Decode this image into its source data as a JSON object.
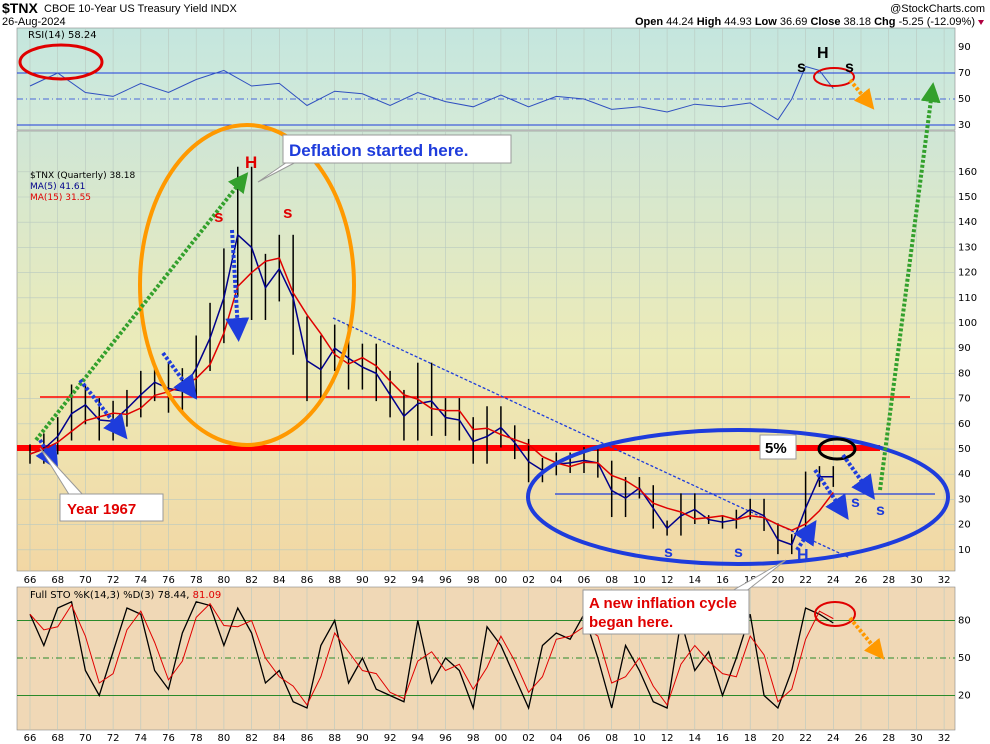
{
  "header": {
    "symbol": "$TNX",
    "name": "CBOE 10-Year US Treasury Yield INDX",
    "date": "26-Aug-2024",
    "watermark": "@StockCharts.com",
    "open_label": "Open",
    "open": "44.24",
    "high_label": "High",
    "high": "44.93",
    "low_label": "Low",
    "low": "36.69",
    "close_label": "Close",
    "close": "38.18",
    "chg_label": "Chg",
    "chg": "-5.25 (-12.09%)"
  },
  "colors": {
    "price": "#000000",
    "ma5": "#00008b",
    "ma15": "#e00000",
    "rsi": "#3050c0",
    "sto_k": "#000000",
    "sto_d": "#e00000",
    "annot_blue": "#1e3cdc",
    "annot_red": "#ff0000",
    "annot_orange": "#ff9900",
    "annot_green": "#33a02c"
  },
  "chart_data": [
    {
      "type": "line",
      "panel": "RSI",
      "legend": "RSI(14) 58.24",
      "ylim": [
        20,
        100
      ],
      "yticks": [
        90,
        70,
        50,
        30
      ],
      "reference_lines": [
        70,
        50,
        30
      ],
      "x": [
        1966,
        1968,
        1970,
        1972,
        1974,
        1976,
        1978,
        1980,
        1982,
        1984,
        1986,
        1988,
        1990,
        1992,
        1994,
        1996,
        1998,
        2000,
        2002,
        2004,
        2006,
        2008,
        2010,
        2012,
        2014,
        2016,
        2018,
        2020,
        2021,
        2022,
        2023,
        2024
      ],
      "values": [
        60,
        70,
        55,
        52,
        62,
        55,
        65,
        72,
        60,
        62,
        45,
        56,
        54,
        45,
        55,
        48,
        44,
        53,
        44,
        52,
        50,
        42,
        44,
        40,
        46,
        44,
        47,
        34,
        50,
        75,
        72,
        58
      ]
    },
    {
      "type": "line",
      "panel": "price",
      "legend": "$TNX (Quarterly) 38.18",
      "ma_legends": [
        "MA(5) 41.61",
        "MA(15) 31.55"
      ],
      "ylim": [
        0,
        170
      ],
      "yticks": [
        10,
        20,
        30,
        40,
        50,
        60,
        70,
        80,
        90,
        100,
        110,
        120,
        130,
        140,
        150,
        160
      ],
      "x": [
        1966,
        1967,
        1968,
        1969,
        1970,
        1971,
        1972,
        1973,
        1974,
        1975,
        1976,
        1977,
        1978,
        1979,
        1980,
        1981,
        1982,
        1983,
        1984,
        1985,
        1986,
        1987,
        1988,
        1989,
        1990,
        1991,
        1992,
        1993,
        1994,
        1995,
        1996,
        1997,
        1998,
        1999,
        2000,
        2001,
        2002,
        2003,
        2004,
        2005,
        2006,
        2007,
        2008,
        2009,
        2010,
        2011,
        2012,
        2013,
        2014,
        2015,
        2016,
        2017,
        2018,
        2019,
        2020,
        2021,
        2022,
        2023,
        2024
      ],
      "values": [
        48,
        52,
        58,
        70,
        65,
        58,
        64,
        68,
        75,
        78,
        70,
        76,
        88,
        100,
        120,
        150,
        110,
        118,
        125,
        95,
        75,
        88,
        92,
        80,
        85,
        75,
        68,
        58,
        78,
        60,
        65,
        58,
        48,
        62,
        55,
        50,
        40,
        43,
        45,
        44,
        47,
        42,
        25,
        36,
        33,
        20,
        17,
        30,
        22,
        22,
        20,
        24,
        28,
        19,
        9,
        15,
        38,
        40,
        38
      ]
    },
    {
      "type": "line",
      "panel": "STO",
      "legend": "Full STO %K(14,3) %D(3) 78.44,",
      "legend_d": "81.09",
      "ylim": [
        0,
        100
      ],
      "yticks": [
        80,
        50,
        20
      ],
      "reference_lines": [
        80,
        50,
        20
      ],
      "x": [
        1966,
        1967,
        1968,
        1969,
        1970,
        1971,
        1972,
        1973,
        1974,
        1975,
        1976,
        1977,
        1978,
        1979,
        1980,
        1981,
        1982,
        1983,
        1984,
        1985,
        1986,
        1987,
        1988,
        1989,
        1990,
        1991,
        1992,
        1993,
        1994,
        1995,
        1996,
        1997,
        1998,
        1999,
        2000,
        2001,
        2002,
        2003,
        2004,
        2005,
        2006,
        2007,
        2008,
        2009,
        2010,
        2011,
        2012,
        2013,
        2014,
        2015,
        2016,
        2017,
        2018,
        2019,
        2020,
        2021,
        2022,
        2023,
        2024
      ],
      "values": [
        85,
        60,
        90,
        95,
        40,
        20,
        55,
        90,
        85,
        40,
        25,
        70,
        95,
        92,
        60,
        90,
        70,
        30,
        40,
        15,
        10,
        60,
        80,
        30,
        50,
        25,
        20,
        15,
        80,
        30,
        50,
        40,
        10,
        75,
        60,
        35,
        10,
        60,
        70,
        65,
        85,
        50,
        10,
        60,
        40,
        15,
        10,
        80,
        40,
        55,
        20,
        50,
        85,
        20,
        10,
        40,
        90,
        85,
        78
      ]
    }
  ],
  "x_axis": {
    "ticks": [
      "66",
      "68",
      "70",
      "72",
      "74",
      "76",
      "78",
      "80",
      "82",
      "84",
      "86",
      "88",
      "90",
      "92",
      "94",
      "96",
      "98",
      "00",
      "02",
      "04",
      "06",
      "08",
      "10",
      "12",
      "14",
      "16",
      "18",
      "20",
      "22",
      "24",
      "26",
      "28",
      "30",
      "32"
    ]
  },
  "annotations": {
    "deflation": "Deflation started here.",
    "year1967": "Year 1967",
    "five_pct": "5%",
    "inflation_1": "A new inflation cycle",
    "inflation_2": "began here.",
    "h_top": "H",
    "s_left": "s",
    "s_right": "s",
    "rsi_s1": "s",
    "rsi_h": "H",
    "rsi_s2": "s",
    "s_2012": "s",
    "s_2017": "s",
    "h_2021": "H",
    "s_2025": "s",
    "s_2027": "s"
  }
}
